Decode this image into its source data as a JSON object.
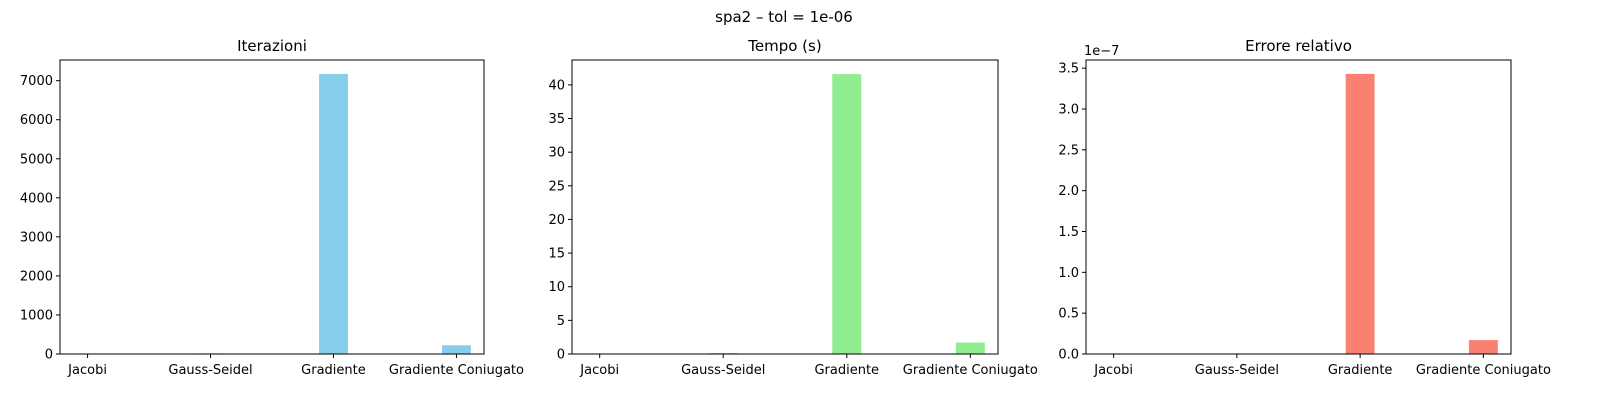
{
  "suptitle": "spa2 – tol = 1e-06",
  "chart_data": [
    {
      "type": "bar",
      "title": "Iterazioni",
      "categories": [
        "Jacobi",
        "Gauss-Seidel",
        "Gradiente",
        "Gradiente Coniugato"
      ],
      "values": [
        9,
        17,
        7173,
        223
      ],
      "ylim": [
        0,
        7530
      ],
      "yticks": [
        0,
        1000,
        2000,
        3000,
        4000,
        5000,
        6000,
        7000
      ],
      "ytick_labels": [
        "0",
        "1000",
        "2000",
        "3000",
        "4000",
        "5000",
        "6000",
        "7000"
      ],
      "offset_label": "",
      "xlabel": "",
      "ylabel": "",
      "color": "#87ceeb",
      "grid": false
    },
    {
      "type": "bar",
      "title": "Tempo (s)",
      "categories": [
        "Jacobi",
        "Gauss-Seidel",
        "Gradiente",
        "Gradiente Coniugato"
      ],
      "values": [
        0.05,
        0.15,
        41.6,
        1.7
      ],
      "ylim": [
        0,
        43.7
      ],
      "yticks": [
        0,
        5,
        10,
        15,
        20,
        25,
        30,
        35,
        40
      ],
      "ytick_labels": [
        "0",
        "5",
        "10",
        "15",
        "20",
        "25",
        "30",
        "35",
        "40"
      ],
      "offset_label": "",
      "xlabel": "",
      "ylabel": "",
      "color": "#90ee90",
      "grid": false
    },
    {
      "type": "bar",
      "title": "Errore relativo",
      "categories": [
        "Jacobi",
        "Gauss-Seidel",
        "Gradiente",
        "Gradiente Coniugato"
      ],
      "values": [
        0.0,
        0.0,
        3.43,
        0.17
      ],
      "ylim": [
        0,
        3.6
      ],
      "yticks": [
        0,
        0.5,
        1.0,
        1.5,
        2.0,
        2.5,
        3.0,
        3.5
      ],
      "ytick_labels": [
        "0.0",
        "0.5",
        "1.0",
        "1.5",
        "2.0",
        "2.5",
        "3.0",
        "3.5"
      ],
      "offset_label": "1e−7",
      "xlabel": "",
      "ylabel": "",
      "color": "#fa8072",
      "grid": false
    }
  ]
}
